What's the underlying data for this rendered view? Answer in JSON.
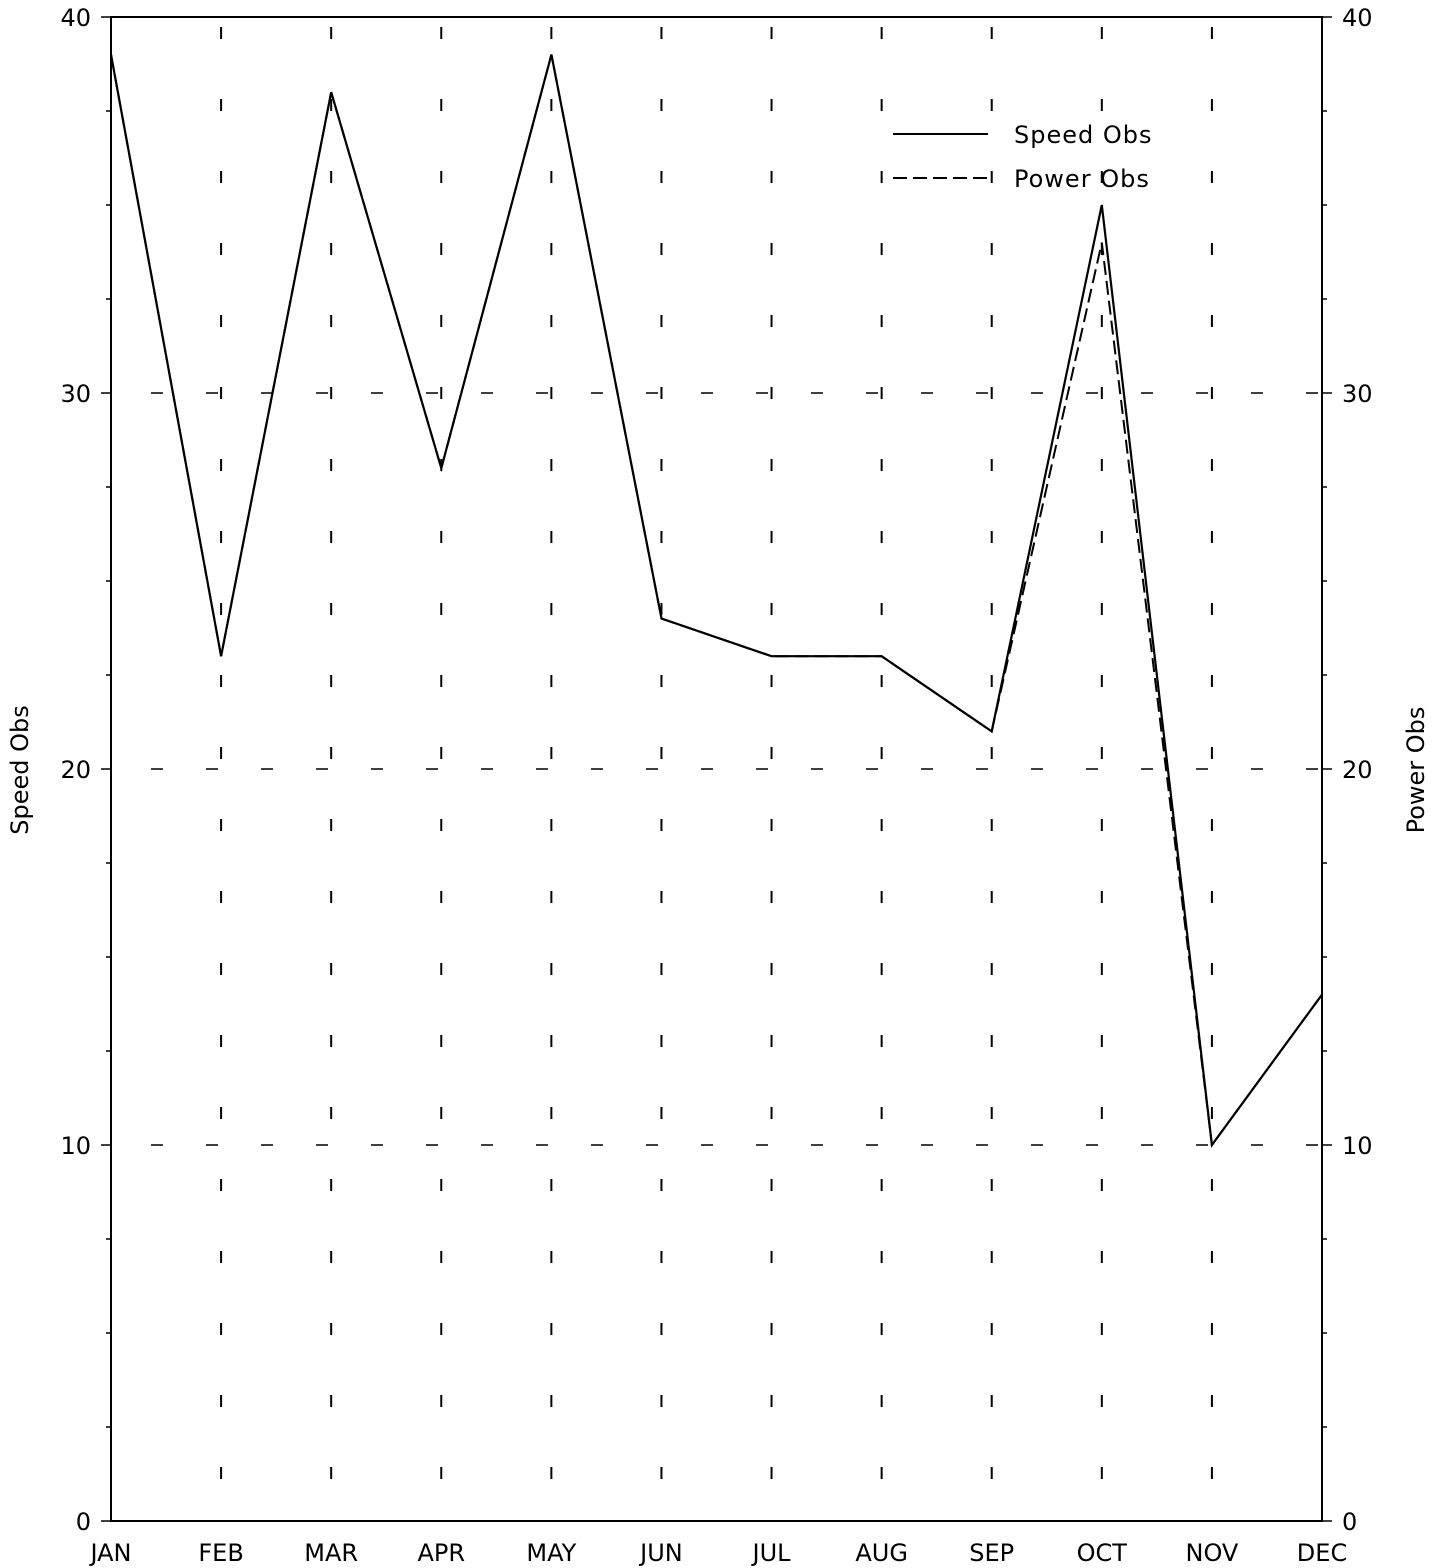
{
  "chart_data": {
    "type": "line",
    "categories": [
      "JAN",
      "FEB",
      "MAR",
      "APR",
      "MAY",
      "JUN",
      "JUL",
      "AUG",
      "SEP",
      "OCT",
      "NOV",
      "DEC"
    ],
    "series": [
      {
        "name": "Speed Obs",
        "style": "solid",
        "axis": "left",
        "values": [
          39,
          23,
          38,
          28,
          39,
          24,
          23,
          23,
          21,
          35,
          10,
          14
        ]
      },
      {
        "name": "Power Obs",
        "style": "dashed",
        "axis": "right",
        "values": [
          39,
          23,
          38,
          28,
          39,
          24,
          23,
          23,
          21,
          34,
          10,
          14
        ]
      }
    ],
    "ylabel": "Speed Obs",
    "y2label": "Power Obs",
    "ylim": [
      0,
      40
    ],
    "y2lim": [
      0,
      40
    ],
    "yticks": [
      0,
      10,
      20,
      30,
      40
    ],
    "grid": "dashed",
    "legend_position": "top-right",
    "line_color": "#000000"
  }
}
